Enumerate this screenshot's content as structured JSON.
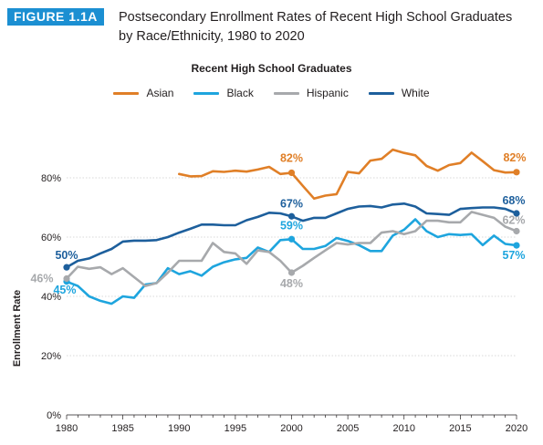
{
  "figure": {
    "label": "FIGURE 1.1A",
    "title_line1": "Postsecondary Enrollment Rates of Recent High School Graduates",
    "title_line2": "by Race/Ethnicity, 1980 to 2020"
  },
  "chart_data": {
    "type": "line",
    "title": "Recent High School Graduates",
    "ylabel": "Enrollment Rate",
    "xlabel": "",
    "xlim": [
      1980,
      2020
    ],
    "ylim": [
      0,
      100
    ],
    "x_ticks": [
      1980,
      1985,
      1990,
      1995,
      2000,
      2005,
      2010,
      2015,
      2020
    ],
    "y_ticks": [
      0,
      20,
      40,
      60,
      80
    ],
    "y_tick_labels": [
      "0%",
      "20%",
      "40%",
      "60%",
      "80%"
    ],
    "grid": "horizontal",
    "legend_position": "top",
    "series": [
      {
        "name": "Asian",
        "color": "#e07f27",
        "x": [
          1990,
          1991,
          1992,
          1993,
          1994,
          1995,
          1996,
          1997,
          1998,
          1999,
          2000,
          2001,
          2002,
          2003,
          2004,
          2005,
          2006,
          2007,
          2008,
          2009,
          2010,
          2011,
          2012,
          2013,
          2014,
          2015,
          2016,
          2017,
          2018,
          2019,
          2020
        ],
        "values": [
          81.3,
          80.5,
          80.6,
          82.2,
          82.0,
          82.4,
          82.1,
          82.8,
          83.7,
          81.3,
          81.7,
          77.3,
          73.0,
          74.0,
          74.5,
          82.0,
          81.5,
          85.8,
          86.4,
          89.5,
          88.4,
          87.6,
          84.0,
          82.4,
          84.3,
          85.0,
          88.5,
          85.6,
          82.6,
          81.8,
          81.9
        ],
        "labels": [
          {
            "x": 2000,
            "y": 81.7,
            "text": "82%",
            "dx": 0,
            "dy": -12
          },
          {
            "x": 2020,
            "y": 81.9,
            "text": "82%",
            "dx": -2,
            "dy": -12
          }
        ]
      },
      {
        "name": "Black",
        "color": "#1ea5de",
        "x": [
          1980,
          1981,
          1982,
          1983,
          1984,
          1985,
          1986,
          1987,
          1988,
          1989,
          1990,
          1991,
          1992,
          1993,
          1994,
          1995,
          1996,
          1997,
          1998,
          1999,
          2000,
          2001,
          2002,
          2003,
          2004,
          2005,
          2006,
          2007,
          2008,
          2009,
          2010,
          2011,
          2012,
          2013,
          2014,
          2015,
          2016,
          2017,
          2018,
          2019,
          2020
        ],
        "values": [
          45.0,
          43.5,
          40.0,
          38.5,
          37.5,
          40.0,
          39.5,
          44.0,
          44.5,
          49.5,
          47.5,
          48.5,
          47.0,
          50.0,
          51.5,
          52.5,
          53.0,
          56.5,
          55.0,
          59.0,
          59.3,
          56.0,
          56.0,
          57.0,
          59.7,
          58.7,
          57.3,
          55.3,
          55.3,
          60.5,
          62.5,
          66.0,
          62.0,
          60.0,
          61.0,
          60.7,
          61.0,
          57.3,
          60.5,
          57.7,
          57.2
        ],
        "labels": [
          {
            "x": 1980,
            "y": 45.0,
            "text": "45%",
            "dx": -2,
            "dy": 13
          },
          {
            "x": 2000,
            "y": 59.3,
            "text": "59%",
            "dx": 0,
            "dy": -11
          },
          {
            "x": 2020,
            "y": 57.2,
            "text": "57%",
            "dx": -3,
            "dy": 15
          }
        ]
      },
      {
        "name": "Hispanic",
        "color": "#a7a9ac",
        "x": [
          1980,
          1981,
          1982,
          1983,
          1984,
          1985,
          1986,
          1987,
          1988,
          1989,
          1990,
          1991,
          1992,
          1993,
          1994,
          1995,
          1996,
          1997,
          1998,
          1999,
          2000,
          2001,
          2002,
          2003,
          2004,
          2005,
          2006,
          2007,
          2008,
          2009,
          2010,
          2011,
          2012,
          2013,
          2014,
          2015,
          2016,
          2017,
          2018,
          2019,
          2020
        ],
        "values": [
          46.0,
          50.0,
          49.3,
          49.8,
          47.5,
          49.5,
          46.5,
          43.5,
          44.5,
          48.0,
          52.0,
          52.0,
          52.0,
          58.0,
          55.0,
          54.5,
          51.0,
          55.5,
          55.0,
          52.0,
          48.0,
          50.3,
          53.0,
          55.5,
          58.0,
          57.5,
          58.0,
          58.0,
          61.5,
          62.0,
          61.0,
          62.0,
          65.5,
          65.5,
          65.0,
          65.0,
          68.5,
          67.5,
          66.5,
          63.5,
          62.0
        ],
        "labels": [
          {
            "x": 1980,
            "y": 46.0,
            "text": "46%",
            "dx": -27,
            "dy": 4
          },
          {
            "x": 2000,
            "y": 48.0,
            "text": "48%",
            "dx": 0,
            "dy": 16
          },
          {
            "x": 2020,
            "y": 62.0,
            "text": "62%",
            "dx": -3,
            "dy": -8
          }
        ]
      },
      {
        "name": "White",
        "color": "#1d5f9c",
        "x": [
          1980,
          1981,
          1982,
          1983,
          1984,
          1985,
          1986,
          1987,
          1988,
          1989,
          1990,
          1991,
          1992,
          1993,
          1994,
          1995,
          1996,
          1997,
          1998,
          1999,
          2000,
          2001,
          2002,
          2003,
          2004,
          2005,
          2006,
          2007,
          2008,
          2009,
          2010,
          2011,
          2012,
          2013,
          2014,
          2015,
          2016,
          2017,
          2018,
          2019,
          2020
        ],
        "values": [
          49.8,
          52.0,
          52.8,
          54.5,
          56.0,
          58.5,
          58.8,
          58.8,
          59.0,
          60.0,
          61.5,
          62.8,
          64.2,
          64.2,
          64.0,
          64.0,
          65.7,
          66.8,
          68.2,
          68.0,
          67.0,
          65.5,
          66.5,
          66.5,
          68.0,
          69.5,
          70.3,
          70.5,
          70.0,
          71.0,
          71.3,
          70.3,
          68.0,
          67.8,
          67.5,
          69.5,
          69.8,
          70.0,
          70.0,
          69.5,
          68.0
        ],
        "labels": [
          {
            "x": 1980,
            "y": 49.8,
            "text": "50%",
            "dx": 0,
            "dy": -9
          },
          {
            "x": 2000,
            "y": 67.0,
            "text": "67%",
            "dx": 0,
            "dy": -10
          },
          {
            "x": 2020,
            "y": 68.0,
            "text": "68%",
            "dx": -3,
            "dy": -10
          }
        ]
      }
    ]
  }
}
